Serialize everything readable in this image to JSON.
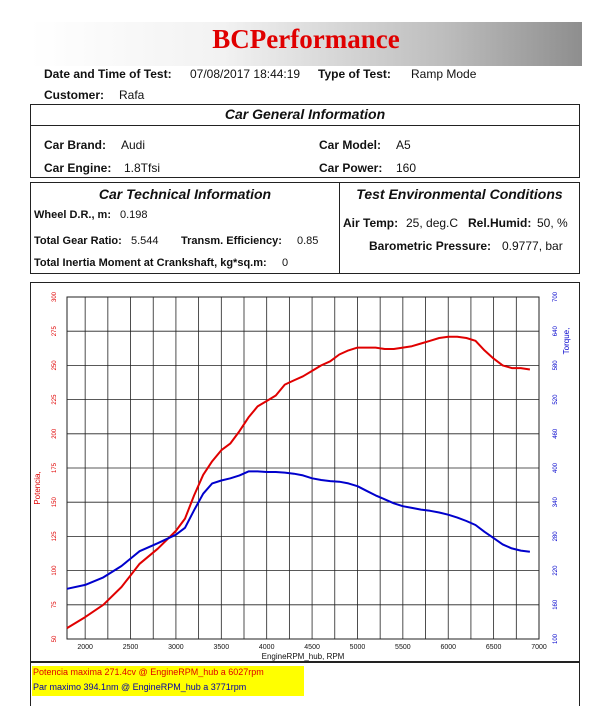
{
  "header": {
    "title": "BCPerformance"
  },
  "test_info": {
    "date_label": "Date and Time of Test:",
    "date_value": "07/08/2017 18:44:19",
    "type_label": "Type of Test:",
    "type_value": "Ramp Mode",
    "customer_label": "Customer:",
    "customer_value": "Rafa"
  },
  "general": {
    "title": "Car General Information",
    "brand_label": "Car Brand:",
    "brand_value": "Audi",
    "model_label": "Car Model:",
    "model_value": "A5",
    "engine_label": "Car Engine:",
    "engine_value": "1.8Tfsi",
    "power_label": "Car Power:",
    "power_value": "160"
  },
  "technical": {
    "title": "Car Technical Information",
    "wheel_label": "Wheel D.R., m:",
    "wheel_value": "0.198",
    "gear_label": "Total Gear Ratio:",
    "gear_value": "5.544",
    "eff_label": "Transm. Efficiency:",
    "eff_value": "0.85",
    "inertia_label": "Total Inertia Moment at Crankshaft, kg*sq.m:",
    "inertia_value": "0"
  },
  "environment": {
    "title": "Test Environmental Conditions",
    "temp_label": "Air Temp:",
    "temp_value": "25, deg.C",
    "humid_label": "Rel.Humid:",
    "humid_value": "50, %",
    "baro_label": "Barometric Pressure:",
    "baro_value": "0.9777, bar"
  },
  "notes": {
    "power_max": "Potencia maxima 271.4cv  @ EngineRPM_hub a 6027rpm",
    "torque_max": "Par maximo 394.1nm  @ EngineRPM_hub a 3771rpm"
  },
  "colors": {
    "power": "#e00000",
    "torque": "#0000cc",
    "highlight": "#ffff00"
  },
  "chart_data": {
    "type": "line",
    "xlabel": "EngineRPM_hub, RPM",
    "ylabel_left": "Potencia,",
    "ylabel_right": "Torque,",
    "xlim": [
      1800,
      7000
    ],
    "ylim_left": [
      50,
      300
    ],
    "ylim_right": [
      100,
      700
    ],
    "x_ticks": [
      2000,
      2500,
      3000,
      3500,
      4000,
      4500,
      5000,
      5500,
      6000,
      6500,
      7000
    ],
    "y_left_ticks": [
      50,
      75,
      100,
      125,
      150,
      175,
      200,
      225,
      250,
      275,
      300
    ],
    "y_right_ticks": [
      100,
      160,
      220,
      280,
      340,
      400,
      460,
      520,
      580,
      640,
      700
    ],
    "grid": true,
    "series": [
      {
        "name": "Potencia",
        "axis": "left",
        "color": "#e00000",
        "x": [
          1800,
          2000,
          2200,
          2400,
          2600,
          2800,
          3000,
          3100,
          3200,
          3300,
          3400,
          3500,
          3600,
          3700,
          3800,
          3900,
          4000,
          4100,
          4200,
          4300,
          4400,
          4500,
          4600,
          4700,
          4800,
          4900,
          5000,
          5100,
          5200,
          5300,
          5400,
          5500,
          5600,
          5700,
          5800,
          5900,
          6000,
          6100,
          6200,
          6300,
          6400,
          6500,
          6600,
          6700,
          6800,
          6900
        ],
        "y": [
          58,
          66,
          75,
          88,
          105,
          116,
          129,
          138,
          155,
          170,
          180,
          188,
          193,
          202,
          212,
          220,
          224,
          228,
          236,
          239,
          242,
          246,
          250,
          253,
          258,
          261,
          263,
          263,
          263,
          262,
          262,
          263,
          264,
          266,
          268,
          270,
          271,
          271,
          270,
          268,
          261,
          255,
          250,
          248,
          248,
          247
        ]
      },
      {
        "name": "Torque",
        "axis": "right",
        "color": "#0000cc",
        "x": [
          1800,
          2000,
          2200,
          2400,
          2600,
          2800,
          3000,
          3100,
          3200,
          3300,
          3400,
          3500,
          3600,
          3700,
          3800,
          3900,
          4000,
          4100,
          4200,
          4300,
          4400,
          4500,
          4600,
          4700,
          4800,
          4900,
          5000,
          5100,
          5200,
          5300,
          5400,
          5500,
          5600,
          5700,
          5800,
          5900,
          6000,
          6100,
          6200,
          6300,
          6400,
          6500,
          6600,
          6700,
          6800,
          6900
        ],
        "y": [
          188,
          195,
          208,
          228,
          254,
          268,
          283,
          295,
          326,
          355,
          373,
          378,
          382,
          387,
          394,
          394,
          393,
          393,
          392,
          390,
          387,
          382,
          379,
          377,
          376,
          373,
          368,
          360,
          352,
          345,
          338,
          333,
          330,
          327,
          325,
          322,
          318,
          313,
          307,
          300,
          288,
          277,
          266,
          259,
          255,
          253
        ]
      }
    ]
  }
}
